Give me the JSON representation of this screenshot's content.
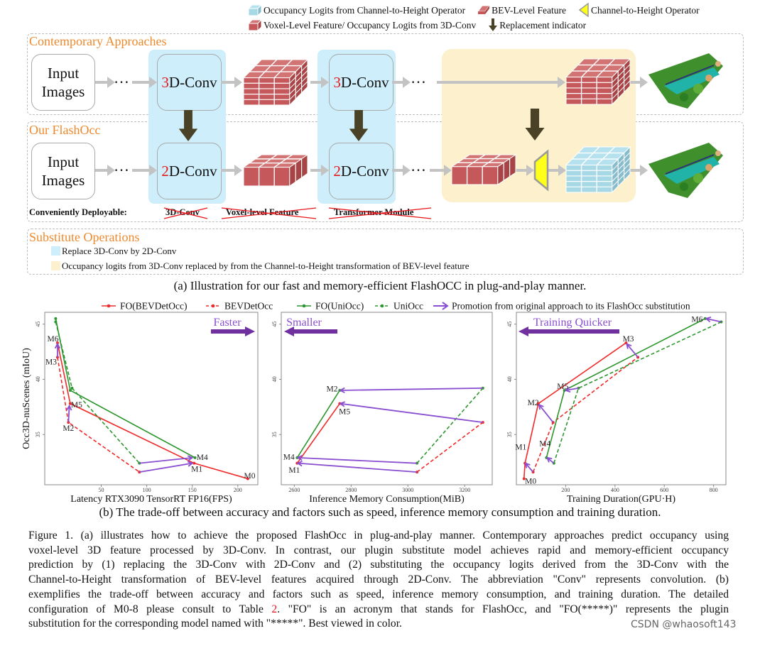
{
  "legend_top": {
    "items": [
      {
        "icon": "blue-brick-icon",
        "label": "Occupancy Logits from Channel-to-Height Operator"
      },
      {
        "icon": "red-flat-brick-icon",
        "label": "BEV-Level Feature"
      },
      {
        "icon": "yellow-trapezoid-icon",
        "label": "Channel-to-Height Operator"
      },
      {
        "icon": "red-brick-icon",
        "label": "Voxel-Level Feature/ Occupancy Logits from 3D-Conv"
      },
      {
        "icon": "down-arrow-icon",
        "label": "Replacement indicator"
      }
    ]
  },
  "diagram": {
    "contemporary": {
      "title": "Contemporary Approaches",
      "input": "Input Images",
      "dots": "…",
      "conv1_num": "3",
      "conv1_rest": "D-Conv",
      "conv2_num": "3",
      "conv2_rest": "D-Conv"
    },
    "flashocc": {
      "title": "Our FlashOcc",
      "input": "Input Images",
      "dots": "…",
      "conv1_num": "2",
      "conv1_rest": "D-Conv",
      "conv2_num": "2",
      "conv2_rest": "D-Conv"
    },
    "deployable": {
      "label": "Conveniently Deployable:",
      "struck": [
        "3D-Conv",
        "Voxel-level Feature",
        "Transformer Module"
      ]
    },
    "substitute": {
      "title": "Substitute Operations",
      "items": [
        {
          "color": "#cdeefa",
          "text": "Replace 3D-Conv by 2D-Conv"
        },
        {
          "color": "#fdf0cc",
          "text": "Occupancy logits from 3D-Conv replaced by from the Channel-to-Height transformation of BEV-level feature"
        }
      ]
    },
    "caption": "(a) Illustration for our fast and memory-efficient FlashOCC in plug-and-play manner.",
    "colors": {
      "accent_orange": "#ee8a2e",
      "highlight_red": "#e8151b",
      "blue_column": "#cdeefa",
      "yellow_area": "#fdf0cc",
      "brick_red": "#c8585a",
      "brick_blue": "#a8dcea",
      "operator_yellow": "#ffff1a",
      "replacement_arrow": "#4a4226"
    }
  },
  "chart_legend": {
    "items": [
      {
        "name": "FO(BEVDetOcc)",
        "color": "#f02a2a",
        "dashed": false
      },
      {
        "name": "BEVDetOcc",
        "color": "#f02a2a",
        "dashed": true
      },
      {
        "name": "FO(UniOcc)",
        "color": "#2e962e",
        "dashed": false
      },
      {
        "name": "UniOcc",
        "color": "#2e962e",
        "dashed": true
      },
      {
        "name": "Promotion from original approach to its FlashOcc substitution",
        "color": "#8a4fd0",
        "arrow": true
      }
    ]
  },
  "chart_data": [
    {
      "type": "line",
      "xlabel": "Latency RTX3090 TensorRT FP16(FPS)",
      "ylabel": "Occ3D-nuScenes (mIoU)",
      "xlim": [
        -12,
        222
      ],
      "ylim": [
        30.45,
        46.07
      ],
      "xticks": [
        "50",
        "100",
        "150",
        "200"
      ],
      "yticks": [
        "35",
        "40",
        "45"
      ],
      "grid": false,
      "annotation": {
        "text": "Faster",
        "direction": "right"
      },
      "series": [
        {
          "name": "FO(BEVDetOcc)",
          "points": [
            [
              2,
              43.3
            ],
            [
              16,
              37.8
            ],
            [
              152,
              32.4
            ],
            [
              211,
              31.0
            ]
          ]
        },
        {
          "name": "BEVDetOcc",
          "points": [
            [
              2,
              42.0
            ],
            [
              14,
              36.1
            ],
            [
              92,
              31.6
            ]
          ]
        },
        {
          "name": "FO(UniOcc)",
          "points": [
            [
              0,
              45.5
            ],
            [
              16,
              39.0
            ],
            [
              153,
              32.9
            ]
          ]
        },
        {
          "name": "UniOcc",
          "points": [
            [
              0,
              45.2
            ],
            [
              18,
              39.2
            ],
            [
              92,
              32.4
            ]
          ]
        }
      ],
      "arrows": [
        {
          "from": [
            92,
            31.6
          ],
          "to": [
            150,
            32.4
          ]
        },
        {
          "from": [
            92,
            32.4
          ],
          "to": [
            150,
            32.9
          ]
        },
        {
          "from": [
            14,
            36.1
          ],
          "to": [
            15,
            37.6
          ]
        },
        {
          "from": [
            2,
            42.0
          ],
          "to": [
            2,
            43.2
          ]
        }
      ],
      "labels": [
        {
          "text": "M6",
          "x": -3,
          "y": 43.7
        },
        {
          "text": "M3",
          "x": -5,
          "y": 41.6
        },
        {
          "text": "M5",
          "x": 23,
          "y": 37.7
        },
        {
          "text": "M2",
          "x": 14,
          "y": 35.6
        },
        {
          "text": "M4",
          "x": 161,
          "y": 32.95
        },
        {
          "text": "M1",
          "x": 155,
          "y": 31.9
        },
        {
          "text": "M0",
          "x": 213,
          "y": 31.3
        }
      ]
    },
    {
      "type": "line",
      "xlabel": "Inference Memory Consumption(MiB)",
      "ylabel": "",
      "xlim": [
        2554,
        3297
      ],
      "ylim": [
        30.45,
        46.07
      ],
      "xticks": [
        "2600",
        "2800",
        "3000",
        "3200"
      ],
      "yticks": [
        "35",
        "40",
        "45"
      ],
      "grid": false,
      "annotation": {
        "text": "Smaller",
        "direction": "left"
      },
      "series": [
        {
          "name": "FO(BEVDetOcc)",
          "points": [
            [
              2610,
              32.4
            ],
            [
              2760,
              37.8
            ]
          ]
        },
        {
          "name": "BEVDetOcc",
          "points": [
            [
              3032,
              31.6
            ],
            [
              3264,
              36.1
            ]
          ]
        },
        {
          "name": "FO(UniOcc)",
          "points": [
            [
              2610,
              32.9
            ],
            [
              2760,
              39.0
            ]
          ]
        },
        {
          "name": "UniOcc",
          "points": [
            [
              3032,
              32.4
            ],
            [
              3264,
              39.2
            ]
          ]
        }
      ],
      "arrows": [
        {
          "from": [
            3264,
            39.2
          ],
          "to": [
            2762,
            39.0
          ]
        },
        {
          "from": [
            3264,
            36.1
          ],
          "to": [
            2762,
            37.8
          ]
        },
        {
          "from": [
            3032,
            32.4
          ],
          "to": [
            2612,
            32.9
          ]
        },
        {
          "from": [
            3032,
            31.6
          ],
          "to": [
            2612,
            32.4
          ]
        }
      ],
      "labels": [
        {
          "text": "M2",
          "x": 2733,
          "y": 39.15
        },
        {
          "text": "M5",
          "x": 2777,
          "y": 37.1
        },
        {
          "text": "M4",
          "x": 2581,
          "y": 33.0
        },
        {
          "text": "M1",
          "x": 2600,
          "y": 31.8
        }
      ]
    },
    {
      "type": "line",
      "xlabel": "Training Duration(GPU·H)",
      "ylabel": "",
      "xlim": [
        0,
        850
      ],
      "ylim": [
        30.45,
        46.07
      ],
      "xticks": [
        "200",
        "400",
        "600",
        "800"
      ],
      "yticks": [
        "35",
        "40",
        "45"
      ],
      "grid": false,
      "annotation": {
        "text": "Training Quicker",
        "direction": "left"
      },
      "series": [
        {
          "name": "FO(BEVDetOcc)",
          "points": [
            [
              31,
              31.0
            ],
            [
              35,
              32.4
            ],
            [
              89,
              37.8
            ],
            [
              445,
              43.3
            ]
          ]
        },
        {
          "name": "BEVDetOcc",
          "points": [
            [
              68,
              31.6
            ],
            [
              149,
              36.1
            ],
            [
              493,
              42.0
            ]
          ]
        },
        {
          "name": "FO(UniOcc)",
          "points": [
            [
              122,
              32.9
            ],
            [
              195,
              39.0
            ],
            [
              766,
              45.5
            ]
          ]
        },
        {
          "name": "UniOcc",
          "points": [
            [
              152,
              32.4
            ],
            [
              252,
              39.2
            ],
            [
              831,
              45.2
            ]
          ]
        }
      ],
      "arrows": [
        {
          "from": [
            831,
            45.2
          ],
          "to": [
            770,
            45.5
          ]
        },
        {
          "from": [
            493,
            42.0
          ],
          "to": [
            448,
            43.2
          ]
        },
        {
          "from": [
            252,
            39.2
          ],
          "to": [
            200,
            39.0
          ]
        },
        {
          "from": [
            149,
            36.1
          ],
          "to": [
            92,
            37.7
          ]
        },
        {
          "from": [
            152,
            32.4
          ],
          "to": [
            125,
            32.9
          ]
        },
        {
          "from": [
            68,
            31.6
          ],
          "to": [
            37,
            32.4
          ]
        }
      ],
      "labels": [
        {
          "text": "M6",
          "x": 733,
          "y": 45.47
        },
        {
          "text": "M3",
          "x": 454,
          "y": 43.7
        },
        {
          "text": "M5",
          "x": 188,
          "y": 39.4
        },
        {
          "text": "M2",
          "x": 68,
          "y": 37.9
        },
        {
          "text": "M4",
          "x": 116,
          "y": 34.2
        },
        {
          "text": "M1",
          "x": 18,
          "y": 33.9
        },
        {
          "text": "M0",
          "x": 58,
          "y": 30.8
        }
      ]
    }
  ],
  "caption_b": "(b) The trade-off between accuracy and factors such as speed, inference memory consumption and training duration.",
  "figure_caption": {
    "lines": [
      "Figure 1.  (a) illustrates how to achieve the proposed FlashOcc in plug-and-play manner. Contemporary approaches predict occupancy using",
      "voxel-level 3D feature processed by 3D-Conv.  In contrast, our plugin substitute model achieves rapid and memory-efficient occupancy",
      "prediction by (1) replacing the 3D-Conv with 2D-Conv and (2) substituting the occupancy logits derived from the 3D-Conv with the",
      "Channel-to-Height transformation of BEV-level features acquired through 2D-Conv. The abbreviation \"Conv\" represents convolution. (b)",
      "exemplifies the trade-off between accuracy and factors such as speed, inference memory consumption, and training duration. The detailed",
      "configuration of M0-8 please consult to Table 2.  \"FO\" is an acronym that stands for FlashOcc, and \"FO(*****)\" represents the plugin",
      "substitution for the corresponding model named with \"*****\". Best viewed in color."
    ]
  },
  "watermark": "CSDN @whaosoft143"
}
